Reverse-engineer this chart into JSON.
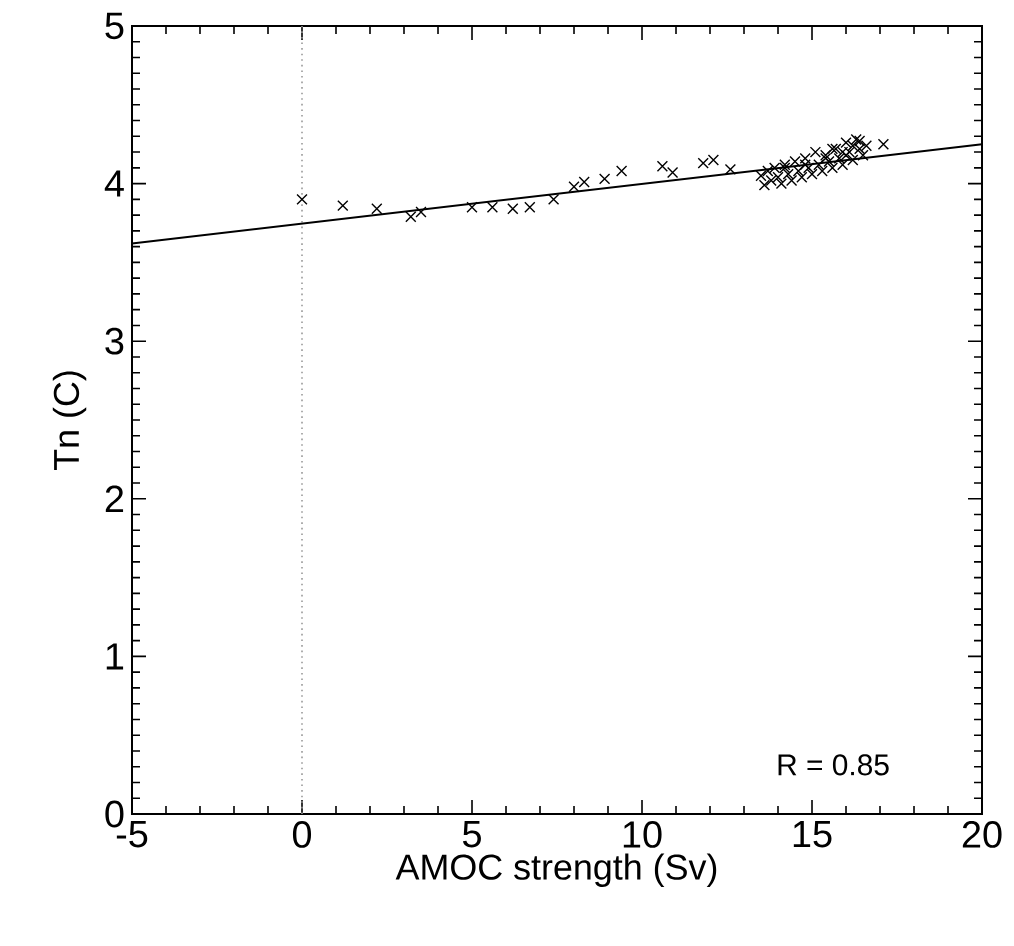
{
  "chart_data": {
    "type": "scatter",
    "xlabel": "AMOC strength (Sv)",
    "ylabel": "Tn (C)",
    "xlim": [
      -5,
      20
    ],
    "ylim": [
      0,
      5
    ],
    "xticks": [
      -5,
      0,
      5,
      10,
      15,
      20
    ],
    "yticks": [
      0,
      1,
      2,
      3,
      4,
      5
    ],
    "marker": "cross",
    "series": [
      {
        "color": "#000000",
        "x": [
          0.0,
          1.2,
          2.2,
          3.2,
          3.5,
          5.0,
          5.6,
          6.2,
          6.7,
          7.4,
          8.0,
          8.3,
          8.9,
          9.4,
          10.6,
          10.9,
          11.8,
          12.1,
          12.6,
          13.5,
          13.6,
          13.7,
          13.8,
          13.9,
          14.0,
          14.1,
          14.2,
          14.3,
          14.4,
          14.5,
          14.6,
          14.7,
          14.8,
          14.9,
          15.0,
          15.1,
          15.2,
          15.3,
          15.4,
          15.5,
          15.6,
          15.7,
          15.8,
          15.9,
          16.0,
          16.1,
          16.2,
          16.3,
          16.4,
          16.5,
          16.6,
          14.2,
          14.8,
          15.4,
          15.9,
          16.2,
          16.4,
          15.6,
          16.0,
          17.1
        ],
        "values": [
          3.9,
          3.86,
          3.84,
          3.79,
          3.82,
          3.85,
          3.85,
          3.84,
          3.85,
          3.9,
          3.98,
          4.01,
          4.03,
          4.08,
          4.11,
          4.07,
          4.13,
          4.15,
          4.09,
          4.05,
          3.99,
          4.08,
          4.02,
          4.1,
          4.04,
          4.0,
          4.12,
          4.06,
          4.02,
          4.14,
          4.08,
          4.04,
          4.16,
          4.1,
          4.06,
          4.2,
          4.12,
          4.08,
          4.18,
          4.14,
          4.1,
          4.22,
          4.16,
          4.12,
          4.26,
          4.2,
          4.15,
          4.28,
          4.22,
          4.18,
          4.24,
          4.1,
          4.12,
          4.16,
          4.2,
          4.24,
          4.27,
          4.22,
          4.18,
          4.25
        ]
      },
      {
        "type": "line",
        "color": "#000000",
        "marker": "none",
        "x": [
          -5,
          20
        ],
        "values": [
          3.62,
          4.25
        ]
      }
    ],
    "ref_lines": [
      {
        "axis": "x",
        "value": 0,
        "color": "#999999",
        "line_style": "dotted"
      }
    ],
    "annotations": [
      "R =  0.85"
    ]
  }
}
